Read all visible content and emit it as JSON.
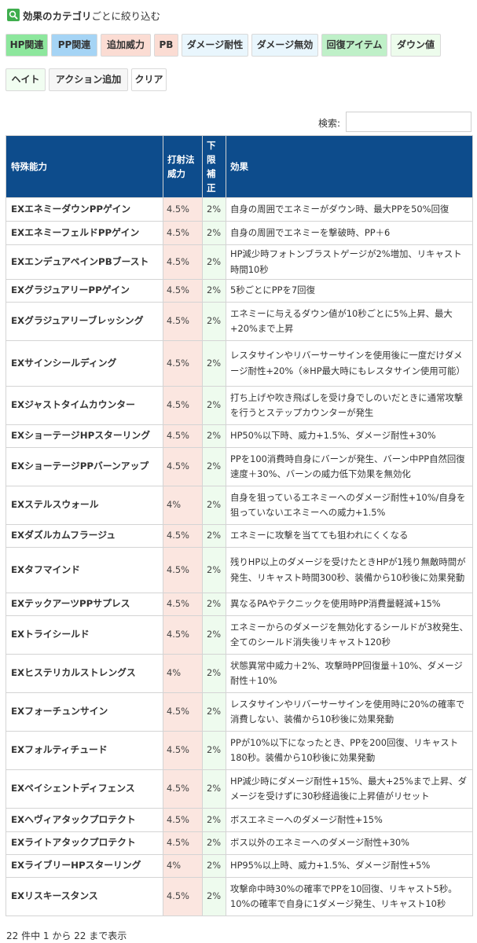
{
  "filter": {
    "title_strong": "効果のカテゴリ",
    "title_rest": "ごとに絞り込む",
    "chips": [
      {
        "label": "HP関連",
        "bg": "#8de79d"
      },
      {
        "label": "PP関連",
        "bg": "#a5d4f5"
      },
      {
        "label": "追加威力",
        "bg": "#fbdcd3"
      },
      {
        "label": "PB",
        "bg": "#fbdcd3"
      },
      {
        "label": "ダメージ耐性",
        "bg": "#e9f6fd"
      },
      {
        "label": "ダメージ無効",
        "bg": "#e9f6fd"
      },
      {
        "label": "回復アイテム",
        "bg": "#bff0c8"
      },
      {
        "label": "ダウン値",
        "bg": "#edfcec"
      },
      {
        "label": "ヘイト",
        "bg": "#f1fdf1"
      },
      {
        "label": "アクション追加",
        "bg": "#f6f6f6"
      },
      {
        "label": "クリア",
        "bg": "#ffffff"
      }
    ]
  },
  "search": {
    "label": "検索:",
    "value": ""
  },
  "table": {
    "headers": [
      "特殊能力",
      "打射法威力",
      "下限補正",
      "効果"
    ],
    "rows": [
      {
        "name": "EXエネミーダウンPPゲイン",
        "rate": "4.5%",
        "min": "2%",
        "effect": "自身の周囲でエネミーがダウン時、最大PPを50%回復"
      },
      {
        "name": "EXエネミーフェルドPPゲイン",
        "rate": "4.5%",
        "min": "2%",
        "effect": "自身の周囲でエネミーを撃破時、PP＋6"
      },
      {
        "name": "EXエンデュアペインPBブースト",
        "rate": "4.5%",
        "min": "2%",
        "effect": "HP減少時フォトンブラストゲージが2%増加、リキャスト時間10秒"
      },
      {
        "name": "EXグラジュアリーPPゲイン",
        "rate": "4.5%",
        "min": "2%",
        "effect": "5秒ごとにPPを7回復"
      },
      {
        "name": "EXグラジュアリーブレッシング",
        "rate": "4.5%",
        "min": "2%",
        "effect": "エネミーに与えるダウン値が10秒ごとに5%上昇、最大+20%まで上昇"
      },
      {
        "name": "EXサインシールディング",
        "rate": "4.5%",
        "min": "2%",
        "effect": "レスタサインやリバーサーサインを使用後に一度だけダメージ耐性+20%（※HP最大時にもレスタサイン使用可能）"
      },
      {
        "name": "EXジャストタイムカウンター",
        "rate": "4.5%",
        "min": "2%",
        "effect": "打ち上げや吹き飛ばしを受け身でしのいだときに通常攻撃を行うとステップカウンターが発生"
      },
      {
        "name": "EXショーテージHPスターリング",
        "rate": "4.5%",
        "min": "2%",
        "effect": "HP50%以下時、威力+1.5%、ダメージ耐性+30%"
      },
      {
        "name": "EXショーテージPPバーンアップ",
        "rate": "4.5%",
        "min": "2%",
        "effect": "PPを100消費時自身にバーンが発生、バーン中PP自然回復速度＋30%、バーンの威力低下効果を無効化"
      },
      {
        "name": "EXステルスウォール",
        "rate": "4%",
        "min": "2%",
        "effect": "自身を狙っているエネミーへのダメージ耐性+10%/自身を狙っていないエネミーへの威力+1.5%"
      },
      {
        "name": "EXダズルカムフラージュ",
        "rate": "4.5%",
        "min": "2%",
        "effect": "エネミーに攻撃を当てても狙われにくくなる"
      },
      {
        "name": "EXタフマインド",
        "rate": "4.5%",
        "min": "2%",
        "effect": "残りHP以上のダメージを受けたときHPが1残り無敵時間が発生、リキャスト時間300秒、装備から10秒後に効果発動"
      },
      {
        "name": "EXテックアーツPPサプレス",
        "rate": "4.5%",
        "min": "2%",
        "effect": "異なるPAやテクニックを使用時PP消費量軽減+15%"
      },
      {
        "name": "EXトライシールド",
        "rate": "4.5%",
        "min": "2%",
        "effect": "エネミーからのダメージを無効化するシールドが3枚発生、全てのシールド消失後リキャスト120秒"
      },
      {
        "name": "EXヒステリカルストレングス",
        "rate": "4%",
        "min": "2%",
        "effect": "状態異常中威力＋2%、攻撃時PP回復量＋10%、ダメージ耐性＋10%"
      },
      {
        "name": "EXフォーチュンサイン",
        "rate": "4.5%",
        "min": "2%",
        "effect": "レスタサインやリバーサーサインを使用時に20%の確率で消費しない、装備から10秒後に効果発動"
      },
      {
        "name": "EXフォルティチュード",
        "rate": "4.5%",
        "min": "2%",
        "effect": "PPが10%以下になったとき、PPを200回復、リキャスト180秒。装備から10秒後に効果発動"
      },
      {
        "name": "EXペイシェントディフェンス",
        "rate": "4.5%",
        "min": "2%",
        "effect": "HP減少時にダメージ耐性+15%、最大+25%まで上昇、ダメージを受けずに30秒経過後に上昇値がリセット"
      },
      {
        "name": "EXヘヴィアタックプロテクト",
        "rate": "4.5%",
        "min": "2%",
        "effect": "ボスエネミーへのダメージ耐性+15%"
      },
      {
        "name": "EXライトアタックプロテクト",
        "rate": "4.5%",
        "min": "2%",
        "effect": "ボス以外のエネミーへのダメージ耐性+30%"
      },
      {
        "name": "EXライブリーHPスターリング",
        "rate": "4%",
        "min": "2%",
        "effect": "HP95%以上時、威力+1.5%、ダメージ耐性+5%"
      },
      {
        "name": "EXリスキースタンス",
        "rate": "4.5%",
        "min": "2%",
        "effect": "攻撃命中時30%の確率でPPを10回復、リキャスト5秒。10%の確率で自身に1ダメージ発生、リキャスト10秒"
      }
    ]
  },
  "info": "22 件中 1 から 22 まで表示"
}
